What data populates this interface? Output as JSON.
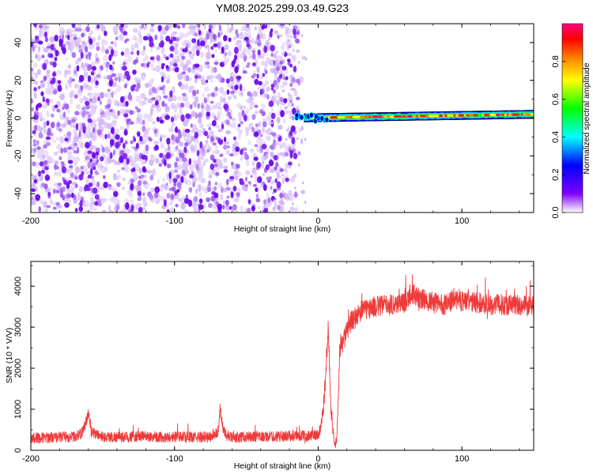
{
  "chart_data": [
    {
      "type": "heatmap",
      "title": "YM08.2025.299.03.49.G23",
      "xlabel": "Height of straight line (km)",
      "ylabel": "Frequency (Hz)",
      "xlim": [
        -200,
        150
      ],
      "ylim": [
        -50,
        50
      ],
      "xticks": [
        -200,
        -100,
        0,
        100
      ],
      "yticks": [
        -40,
        -20,
        0,
        20,
        40
      ],
      "noise_region_x": [
        -200,
        -8
      ],
      "signal_trace": {
        "x_start": -20,
        "x_end": 150,
        "freq_start": 0,
        "freq_end": 2
      },
      "colorbar": {
        "label": "Normalized spectral amplitude",
        "range": [
          0,
          1
        ],
        "ticks": [
          0.0,
          0.2,
          0.4,
          0.6,
          0.8
        ],
        "tick_labels": [
          "0.0",
          "0.2",
          "0.4",
          "0.6",
          "0.8"
        ],
        "colormap": [
          "#ffffff",
          "#8000ff",
          "#0000ff",
          "#00ffff",
          "#00ff00",
          "#ffff00",
          "#ff8000",
          "#ff0000",
          "#ff0080"
        ]
      }
    },
    {
      "type": "line",
      "xlabel": "Height of straight line (km)",
      "ylabel": "SNR (10 * V/V)",
      "xlim": [
        -200,
        150
      ],
      "ylim": [
        0,
        4600
      ],
      "xticks": [
        -200,
        -100,
        0,
        100
      ],
      "yticks": [
        0,
        1000,
        2000,
        3000,
        4000
      ],
      "color": "#f03a3a",
      "series": {
        "name": "SNR",
        "x": [
          -200,
          -190,
          -180,
          -170,
          -165,
          -162,
          -160,
          -158,
          -150,
          -140,
          -130,
          -120,
          -110,
          -100,
          -90,
          -80,
          -75,
          -70,
          -68,
          -66,
          -64,
          -60,
          -50,
          -40,
          -30,
          -20,
          -10,
          -5,
          0,
          2,
          4,
          5,
          6,
          7,
          8,
          9,
          10,
          11,
          12,
          13,
          14,
          15,
          16,
          17,
          18,
          20,
          22,
          25,
          30,
          35,
          40,
          50,
          60,
          65,
          70,
          80,
          90,
          95,
          100,
          110,
          120,
          130,
          140,
          150
        ],
        "y": [
          300,
          310,
          320,
          330,
          400,
          650,
          900,
          450,
          330,
          320,
          330,
          340,
          320,
          330,
          320,
          320,
          330,
          430,
          950,
          480,
          360,
          310,
          330,
          330,
          340,
          350,
          350,
          360,
          380,
          600,
          1200,
          1700,
          2400,
          3000,
          2000,
          900,
          600,
          250,
          150,
          300,
          1200,
          2400,
          2700,
          2500,
          2700,
          2900,
          3100,
          3200,
          3400,
          3450,
          3500,
          3550,
          3600,
          3850,
          3700,
          3600,
          3550,
          3700,
          3650,
          3600,
          3550,
          3550,
          3550,
          3500
        ]
      }
    }
  ]
}
